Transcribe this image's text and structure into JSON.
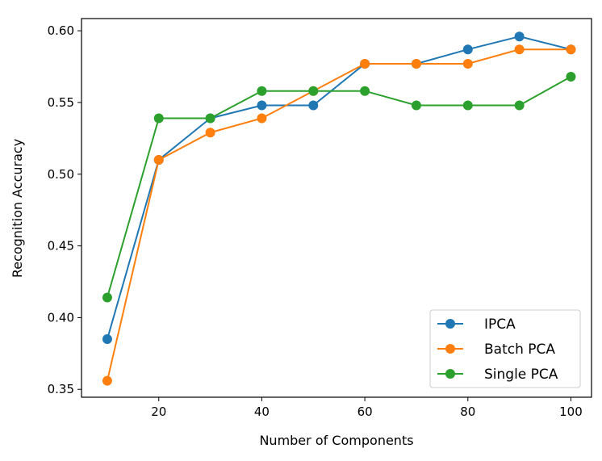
{
  "chart_data": {
    "type": "line",
    "title": "",
    "xlabel": "Number of Components",
    "ylabel": "Recognition Accuracy",
    "xlim": [
      5,
      104
    ],
    "ylim": [
      0.3445,
      0.6085
    ],
    "xticks": [
      20,
      40,
      60,
      80,
      100
    ],
    "yticks": [
      0.35,
      0.4,
      0.45,
      0.5,
      0.55,
      0.6
    ],
    "ytick_labels": [
      "0.35",
      "0.40",
      "0.45",
      "0.50",
      "0.55",
      "0.60"
    ],
    "grid": false,
    "legend_position": "lower-right",
    "x": [
      10,
      20,
      30,
      40,
      50,
      60,
      70,
      80,
      90,
      100
    ],
    "series": [
      {
        "name": "IPCA",
        "color": "#1f77b4",
        "values": [
          0.385,
          0.51,
          0.539,
          0.548,
          0.548,
          0.577,
          0.577,
          0.587,
          0.596,
          0.587
        ]
      },
      {
        "name": "Batch PCA",
        "color": "#ff7f0e",
        "values": [
          0.356,
          0.51,
          0.529,
          0.539,
          0.558,
          0.577,
          0.577,
          0.577,
          0.587,
          0.587
        ]
      },
      {
        "name": "Single PCA",
        "color": "#2ca02c",
        "values": [
          0.414,
          0.539,
          0.539,
          0.558,
          0.558,
          0.558,
          0.548,
          0.548,
          0.548,
          0.568
        ]
      }
    ]
  }
}
